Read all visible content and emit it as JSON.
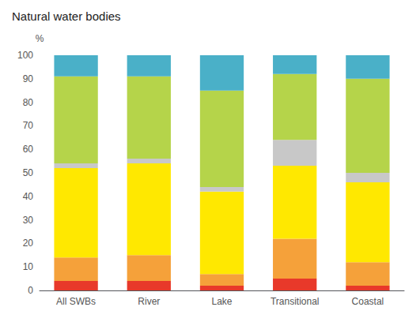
{
  "chart_data": {
    "type": "bar",
    "title": "Natural water bodies",
    "ylabel": "%",
    "categories": [
      "All SWBs",
      "River",
      "Lake",
      "Transitional",
      "Coastal"
    ],
    "series": [
      {
        "color": "#e8392a",
        "values": [
          4,
          4,
          2,
          5,
          2
        ]
      },
      {
        "color": "#f5a13a",
        "values": [
          10,
          11,
          5,
          17,
          10
        ]
      },
      {
        "color": "#ffe800",
        "values": [
          38,
          39,
          35,
          31,
          34
        ]
      },
      {
        "color": "#c8c8c8",
        "values": [
          2,
          2,
          2,
          11,
          4
        ]
      },
      {
        "color": "#b5d44a",
        "values": [
          37,
          35,
          41,
          28,
          40
        ]
      },
      {
        "color": "#4ab0c8",
        "values": [
          9,
          9,
          15,
          8,
          10
        ]
      }
    ],
    "ylim": [
      0,
      100
    ],
    "yticks": [
      0,
      10,
      20,
      30,
      40,
      50,
      60,
      70,
      80,
      90,
      100
    ],
    "stacked": true,
    "grid": false
  }
}
